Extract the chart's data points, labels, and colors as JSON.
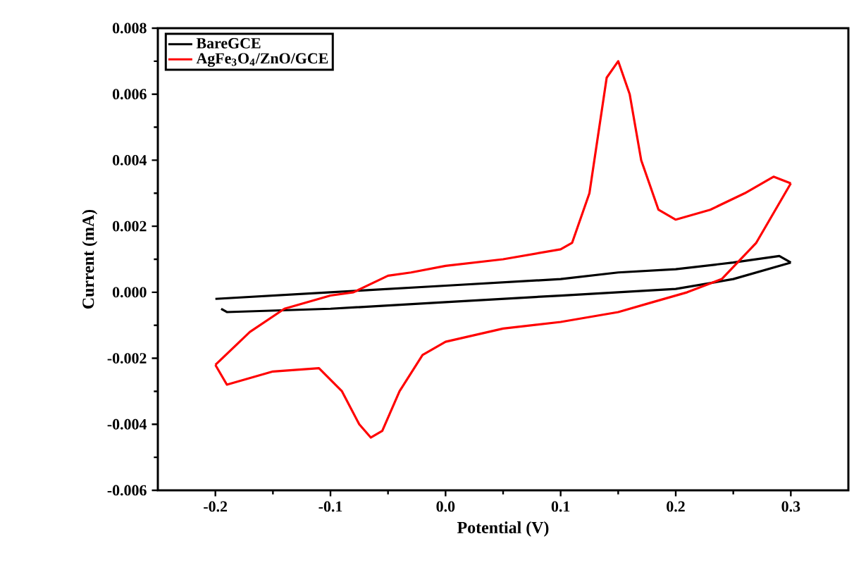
{
  "chart_data": {
    "type": "line",
    "xlabel": "Potential (V)",
    "ylabel": "Current (mA)",
    "xlim": [
      -0.25,
      0.35
    ],
    "ylim": [
      -0.006,
      0.008
    ],
    "xticks": [
      {
        "value": -0.2,
        "label": "-0.2"
      },
      {
        "value": -0.1,
        "label": "-0.1"
      },
      {
        "value": 0,
        "label": "0.0"
      },
      {
        "value": 0.1,
        "label": "0.1"
      },
      {
        "value": 0.2,
        "label": "0.2"
      },
      {
        "value": 0.3,
        "label": "0.3"
      }
    ],
    "yticks": [
      {
        "value": -0.006,
        "label": "-0.006"
      },
      {
        "value": -0.004,
        "label": "-0.004"
      },
      {
        "value": -0.002,
        "label": "-0.002"
      },
      {
        "value": 0,
        "label": "0.000"
      },
      {
        "value": 0.002,
        "label": "0.002"
      },
      {
        "value": 0.004,
        "label": "0.004"
      },
      {
        "value": 0.006,
        "label": "0.006"
      },
      {
        "value": 0.008,
        "label": "0.008"
      }
    ],
    "grid": false,
    "legend": "top left",
    "marker": "none",
    "line_style": "solid",
    "series": [
      {
        "name": "BareGCE",
        "color": "#000000",
        "x": [
          -0.2,
          -0.1,
          0.0,
          0.1,
          0.15,
          0.2,
          0.25,
          0.29,
          0.3
        ],
        "values": [
          -0.0002,
          0.0,
          0.0002,
          0.0004,
          0.0006,
          0.0007,
          0.0009,
          0.0011,
          0.0009
        ]
      },
      {
        "color": "#000000",
        "x": [
          -0.195,
          -0.19,
          -0.1,
          0.0,
          0.1,
          0.2,
          0.25,
          0.3
        ],
        "values": [
          -0.0005,
          -0.0006,
          -0.0005,
          -0.0003,
          -0.0001,
          0.0001,
          0.0004,
          0.0009
        ]
      },
      {
        "name": "AgFe$_{3}$O$_{4}$/ZnO/GCE",
        "color": "#ff0000",
        "x": [
          -0.2,
          -0.17,
          -0.14,
          -0.1,
          -0.08,
          -0.05,
          -0.03,
          0.0,
          0.05,
          0.1,
          0.11,
          0.125,
          0.14,
          0.15,
          0.16,
          0.17,
          0.185,
          0.2,
          0.23,
          0.26,
          0.285,
          0.3
        ],
        "values": [
          -0.0022,
          -0.0012,
          -0.0005,
          -0.0001,
          0.0,
          0.0005,
          0.0006,
          0.0008,
          0.001,
          0.0013,
          0.0015,
          0.003,
          0.0065,
          0.007,
          0.006,
          0.004,
          0.0025,
          0.0022,
          0.0025,
          0.003,
          0.0035,
          0.0033
        ]
      },
      {
        "color": "#ff0000",
        "x": [
          -0.2,
          -0.19,
          -0.15,
          -0.11,
          -0.09,
          -0.075,
          -0.065,
          -0.055,
          -0.04,
          -0.02,
          0.0,
          0.05,
          0.1,
          0.15,
          0.18,
          0.21,
          0.24,
          0.27,
          0.3
        ],
        "values": [
          -0.0022,
          -0.0028,
          -0.0024,
          -0.0023,
          -0.003,
          -0.004,
          -0.0044,
          -0.0042,
          -0.003,
          -0.0019,
          -0.0015,
          -0.0011,
          -0.0009,
          -0.0006,
          -0.0003,
          0.0,
          0.0004,
          0.0015,
          0.0033
        ]
      }
    ]
  }
}
